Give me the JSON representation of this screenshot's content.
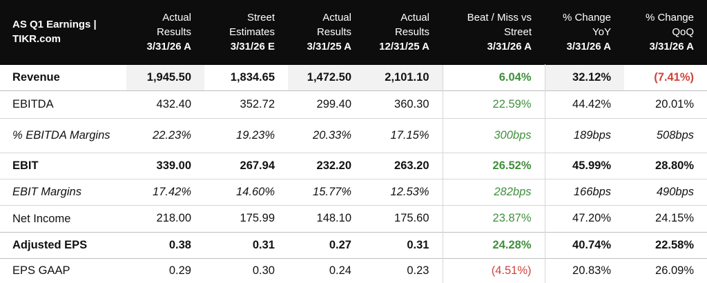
{
  "header": {
    "title": "AS Q1 Earnings | TIKR.com",
    "columns": [
      {
        "label": "Actual Results",
        "date": "3/31/26 A"
      },
      {
        "label": "Street Estimates",
        "date": "3/31/26 E"
      },
      {
        "label": "Actual Results",
        "date": "3/31/25 A"
      },
      {
        "label": "Actual Results",
        "date": "12/31/25 A"
      },
      {
        "label": "Beat / Miss vs Street",
        "date": "3/31/26 A"
      },
      {
        "label": "% Change YoY",
        "date": "3/31/26 A"
      },
      {
        "label": "% Change QoQ",
        "date": "3/31/26 A"
      }
    ]
  },
  "rows": [
    {
      "label": "Revenue",
      "values": [
        "1,945.50",
        "1,834.65",
        "1,472.50",
        "2,101.10",
        "6.04%",
        "32.12%",
        "(7.41%)"
      ]
    },
    {
      "label": "EBITDA",
      "values": [
        "432.40",
        "352.72",
        "299.40",
        "360.30",
        "22.59%",
        "44.42%",
        "20.01%"
      ]
    },
    {
      "label": "% EBITDA Margins",
      "values": [
        "22.23%",
        "19.23%",
        "20.33%",
        "17.15%",
        "300bps",
        "189bps",
        "508bps"
      ]
    },
    {
      "label": "EBIT",
      "values": [
        "339.00",
        "267.94",
        "232.20",
        "263.20",
        "26.52%",
        "45.99%",
        "28.80%"
      ]
    },
    {
      "label": "EBIT Margins",
      "values": [
        "17.42%",
        "14.60%",
        "15.77%",
        "12.53%",
        "282bps",
        "166bps",
        "490bps"
      ]
    },
    {
      "label": "Net Income",
      "values": [
        "218.00",
        "175.99",
        "148.10",
        "175.60",
        "23.87%",
        "47.20%",
        "24.15%"
      ]
    },
    {
      "label": "Adjusted EPS",
      "values": [
        "0.38",
        "0.31",
        "0.27",
        "0.31",
        "24.28%",
        "40.74%",
        "22.58%"
      ]
    },
    {
      "label": "EPS GAAP",
      "values": [
        "0.29",
        "0.30",
        "0.24",
        "0.23",
        "(4.51%)",
        "20.83%",
        "26.09%"
      ]
    }
  ],
  "colors": {
    "header_bg": "#0d0d0d",
    "positive": "#3f8f3b",
    "negative": "#d0423a",
    "shade": "#f2f2f2"
  }
}
